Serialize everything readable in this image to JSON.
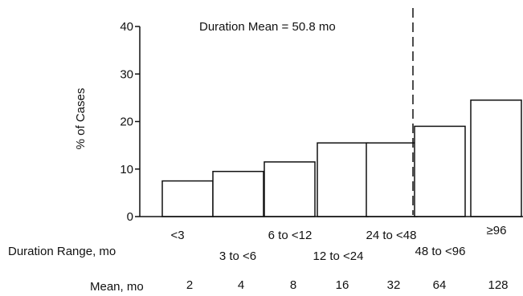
{
  "chart_data": {
    "type": "bar",
    "ylabel": "% of Cases",
    "ylim": [
      0,
      40
    ],
    "yticks": [
      0,
      10,
      20,
      30,
      40
    ],
    "categories": [
      "<3",
      "3 to <6",
      "6 to <12",
      "12 to <24",
      "24 to <48",
      "48 to <96",
      "≥96"
    ],
    "values": [
      7.5,
      9.5,
      11.5,
      15.5,
      15.5,
      19,
      24.5
    ],
    "means": [
      "2",
      "4",
      "8",
      "16",
      "32",
      "64",
      "128"
    ],
    "category_row_label": "Duration Range, mo",
    "mean_row_label": "Mean, mo",
    "annotation": {
      "text": "Duration Mean = 50.8 mo",
      "x_value": 50.8,
      "style": "dashed vertical line"
    },
    "grid": false,
    "legend": "none"
  },
  "colors": {
    "bar_fill": "#ffffff",
    "stroke": "#111111",
    "background": "#ffffff"
  }
}
